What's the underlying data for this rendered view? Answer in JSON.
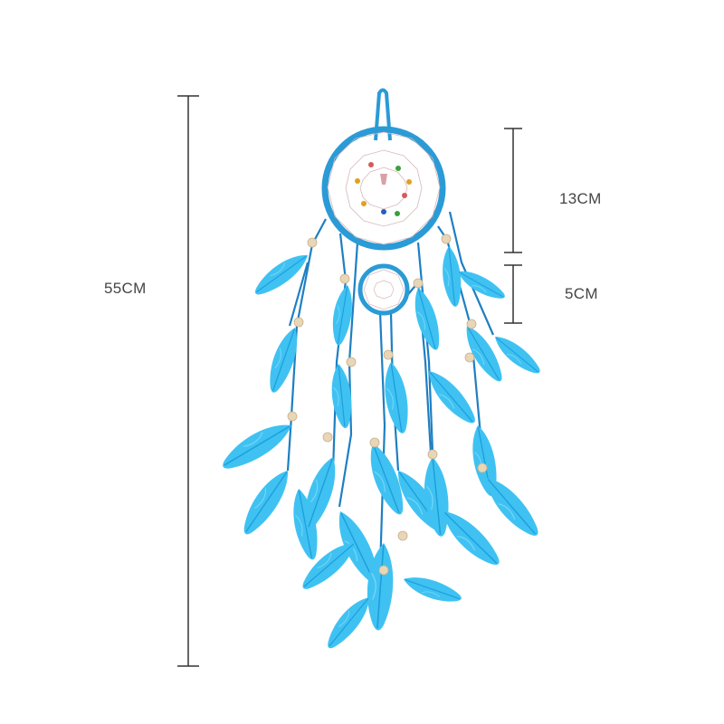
{
  "image": {
    "subject": "dream-catcher-photo",
    "colors": {
      "background": "#ffffff",
      "feather": "#3fc2f2",
      "feather_dark": "#1c9fdc",
      "cord": "#1e7fc2",
      "ring": "#2a9bd6",
      "bead": "#e8d6b8",
      "dimension_line": "#333333",
      "label_text": "#444444"
    }
  },
  "dimensions": {
    "total_length": "55CM",
    "large_ring_diameter": "13CM",
    "small_ring_diameter": "5CM"
  }
}
